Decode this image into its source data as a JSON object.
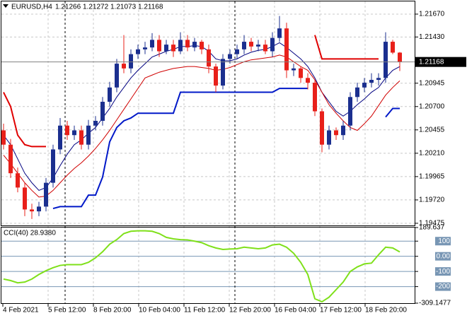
{
  "chart_data": [
    {
      "type": "candlestick",
      "title": "EURUSD,H4",
      "x_labels": [
        "4 Feb 2021",
        "5 Feb 12:00",
        "8 Feb 20:00",
        "10 Feb 04:00",
        "11 Feb 12:00",
        "12 Feb 20:00",
        "16 Feb 04:00",
        "17 Feb 12:00",
        "18 Feb 20:00"
      ],
      "open": [
        1.2045,
        1.203,
        1.2,
        1.1985,
        1.1962,
        1.196,
        1.1965,
        1.199,
        1.2025,
        1.205,
        1.204,
        1.2045,
        1.203,
        1.205,
        1.2055,
        1.2075,
        1.209,
        1.2115,
        1.211,
        1.2125,
        1.213,
        1.2132,
        1.214,
        1.2128,
        1.2135,
        1.2128,
        1.214,
        1.2132,
        1.2138,
        1.213,
        1.2112,
        1.2092,
        1.212,
        1.2125,
        1.213,
        1.2138,
        1.2133,
        1.2135,
        1.2128,
        1.2142,
        1.2152,
        1.2108,
        1.211,
        1.21,
        1.2095,
        1.2065,
        1.203,
        1.2045,
        1.204,
        1.205,
        1.208,
        1.209,
        1.2095,
        1.2098,
        1.21,
        1.2138,
        1.21266
      ],
      "high": [
        1.2052,
        1.2036,
        1.2006,
        1.199,
        1.1968,
        1.197,
        1.1995,
        1.203,
        1.2058,
        1.2055,
        1.205,
        1.205,
        1.2056,
        1.206,
        1.208,
        1.2096,
        1.212,
        1.2145,
        1.213,
        1.2135,
        1.2138,
        1.2147,
        1.2145,
        1.214,
        1.214,
        1.2148,
        1.2145,
        1.2142,
        1.214,
        1.2135,
        1.2115,
        1.2125,
        1.213,
        1.2135,
        1.2145,
        1.2142,
        1.214,
        1.214,
        1.2148,
        1.2165,
        1.2158,
        1.2115,
        1.2112,
        1.2105,
        1.2098,
        1.2068,
        1.205,
        1.2048,
        1.2055,
        1.2085,
        1.2095,
        1.21,
        1.2105,
        1.2105,
        1.2148,
        1.214,
        1.21272
      ],
      "low": [
        1.2025,
        1.1995,
        1.198,
        1.1955,
        1.1952,
        1.1955,
        1.196,
        1.1985,
        1.202,
        1.2035,
        1.2035,
        1.2025,
        1.2025,
        1.2045,
        1.205,
        1.207,
        1.2085,
        1.2105,
        1.2105,
        1.212,
        1.2125,
        1.2128,
        1.2122,
        1.2125,
        1.2122,
        1.2125,
        1.2128,
        1.2128,
        1.2125,
        1.2105,
        1.2085,
        1.2088,
        1.2115,
        1.212,
        1.2125,
        1.2128,
        1.2128,
        1.2125,
        1.2122,
        1.2138,
        1.21,
        1.2102,
        1.2095,
        1.2088,
        1.206,
        1.2022,
        1.2025,
        1.2035,
        1.2035,
        1.2045,
        1.2075,
        1.2085,
        1.209,
        1.2092,
        1.2095,
        1.2125,
        1.21073
      ],
      "close": [
        1.203,
        1.2,
        1.1985,
        1.1962,
        1.196,
        1.1965,
        1.199,
        1.2025,
        1.205,
        1.204,
        1.2045,
        1.203,
        1.205,
        1.2055,
        1.2075,
        1.209,
        1.2115,
        1.211,
        1.2125,
        1.213,
        1.2132,
        1.214,
        1.2128,
        1.2135,
        1.2128,
        1.214,
        1.2132,
        1.2138,
        1.213,
        1.2112,
        1.2092,
        1.212,
        1.2125,
        1.213,
        1.2138,
        1.2133,
        1.2135,
        1.2128,
        1.2142,
        1.2152,
        1.2108,
        1.211,
        1.21,
        1.2095,
        1.2065,
        1.203,
        1.2045,
        1.204,
        1.205,
        1.208,
        1.209,
        1.2095,
        1.2098,
        1.21,
        1.2138,
        1.21266,
        1.21168
      ],
      "up_color": "#1b2f8f",
      "down_color": "#e8201a",
      "series": [
        {
          "color": "#000080",
          "values": [
            1.204,
            1.203,
            1.2015,
            1.2,
            1.199,
            1.1982,
            1.1985,
            1.1995,
            1.2008,
            1.202,
            1.203,
            1.2035,
            1.2042,
            1.2048,
            1.2058,
            1.2068,
            1.208,
            1.209,
            1.21,
            1.2108,
            1.2115,
            1.2122,
            1.2125,
            1.2128,
            1.213,
            1.2133,
            1.2133,
            1.2134,
            1.2133,
            1.2128,
            1.212,
            1.2118,
            1.2118,
            1.212,
            1.2124,
            1.2127,
            1.2129,
            1.213,
            1.2133,
            1.2137,
            1.2132,
            1.2126,
            1.212,
            1.2112,
            1.21,
            1.2085,
            1.2075,
            1.2065,
            1.206,
            1.2065,
            1.2072,
            1.2078,
            1.2085,
            1.209,
            1.21,
            1.2108,
            1.2112
          ]
        },
        {
          "color": "#d00000",
          "values": [
            1.2019,
            1.201,
            1.2,
            1.199,
            1.1982,
            1.1975,
            1.1976,
            1.1982,
            1.199,
            1.1998,
            1.2005,
            1.2011,
            1.2018,
            1.2026,
            1.2035,
            1.2045,
            1.2056,
            1.2067,
            1.2078,
            1.2089,
            1.21,
            1.2103,
            1.2106,
            1.2108,
            1.211,
            1.2111,
            1.2112,
            1.2112,
            1.2111,
            1.211,
            1.2108,
            1.2109,
            1.2111,
            1.2114,
            1.2117,
            1.2119,
            1.212,
            1.2121,
            1.2122,
            1.2124,
            1.2122,
            1.2117,
            1.2112,
            1.2108,
            1.2098,
            1.2085,
            1.2072,
            1.2063,
            1.2055,
            1.2048,
            1.2045,
            1.2052,
            1.206,
            1.2071,
            1.2082,
            1.209,
            1.2097
          ]
        },
        {
          "color": "#e00000",
          "width": 2,
          "values": [
            1.2085,
            1.207,
            1.204,
            1.203,
            1.2028,
            1.2028,
            1.2028,
            null,
            null,
            null,
            null,
            null,
            null,
            null,
            null,
            null,
            null,
            null,
            null,
            null,
            null,
            null,
            null,
            null,
            null,
            null,
            null,
            null,
            null,
            null,
            null,
            null,
            null,
            null,
            null,
            null,
            null,
            null,
            null,
            null,
            null,
            null,
            null,
            null,
            1.2145,
            1.212,
            1.212,
            1.212,
            1.212,
            1.212,
            1.212,
            1.212,
            1.212,
            1.212,
            null,
            null,
            null
          ]
        },
        {
          "color": "#0018c8",
          "width": 2,
          "values": [
            null,
            null,
            null,
            null,
            null,
            null,
            null,
            1.1963,
            1.1965,
            1.1965,
            1.1965,
            1.1965,
            1.1977,
            1.1977,
            1.1996,
            1.2033,
            1.2048,
            1.2055,
            1.2058,
            1.2063,
            1.2063,
            1.2063,
            1.2063,
            1.2063,
            1.2063,
            1.2085,
            1.2085,
            1.2085,
            1.2085,
            1.2085,
            1.2085,
            1.2085,
            1.2085,
            1.2085,
            1.2085,
            1.2085,
            1.2085,
            1.2085,
            1.2085,
            1.2089,
            1.2089,
            1.2089,
            1.2089,
            1.2089,
            null,
            null,
            null,
            null,
            null,
            null,
            null,
            null,
            null,
            null,
            1.2059,
            1.2068,
            1.2068
          ]
        }
      ],
      "ylim": [
        1.19445,
        1.21781
      ],
      "yticks": [
        {
          "value": 1.2167,
          "label": "1.21670"
        },
        {
          "value": 1.2143,
          "label": "1.21430"
        },
        1.20945,
        {
          "value": 1.207,
          "label": "1.20700"
        },
        1.20455,
        {
          "value": 1.2021,
          "label": "1.20210"
        },
        1.19965,
        {
          "value": 1.1972,
          "label": "1.19720"
        },
        1.19475
      ],
      "grid": true
    },
    {
      "type": "line",
      "title": "CCI(40) 28.9380",
      "color": "#7fe01a",
      "values": [
        -150,
        -160,
        -175,
        -170,
        -150,
        -120,
        -95,
        -75,
        -60,
        -55,
        -55,
        -55,
        -40,
        -10,
        30,
        80,
        110,
        150,
        165,
        168,
        168,
        165,
        150,
        125,
        115,
        110,
        108,
        100,
        90,
        70,
        55,
        45,
        48,
        50,
        60,
        55,
        50,
        55,
        75,
        80,
        60,
        20,
        -40,
        -120,
        -280,
        -300,
        -270,
        -220,
        -170,
        -100,
        -70,
        -50,
        -45,
        10,
        60,
        55,
        28.938
      ],
      "ylim": [
        -309.1477,
        189.637
      ],
      "yticks": [
        189.637,
        100,
        {
          "value": 0,
          "label": "0.00"
        },
        -100,
        -200,
        -309.1477
      ],
      "level_color": "#7896b4"
    }
  ]
}
